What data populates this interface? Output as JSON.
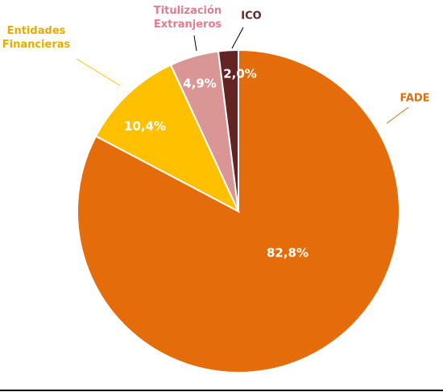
{
  "chart_data": {
    "type": "pie",
    "categories": [
      "FADE",
      "Entidades Financieras",
      "Titulización Extranjeros",
      "ICO"
    ],
    "values": [
      82.8,
      10.4,
      4.9,
      2.0
    ],
    "value_labels": [
      "82,8%",
      "10,4%",
      "4,9%",
      "2,0%"
    ],
    "colors": [
      "#e46c0a",
      "#ffc000",
      "#d99694",
      "#632523"
    ],
    "label_colors": [
      "#e46c0a",
      "#e6ac00",
      "#e57b8e",
      "#632523"
    ]
  }
}
